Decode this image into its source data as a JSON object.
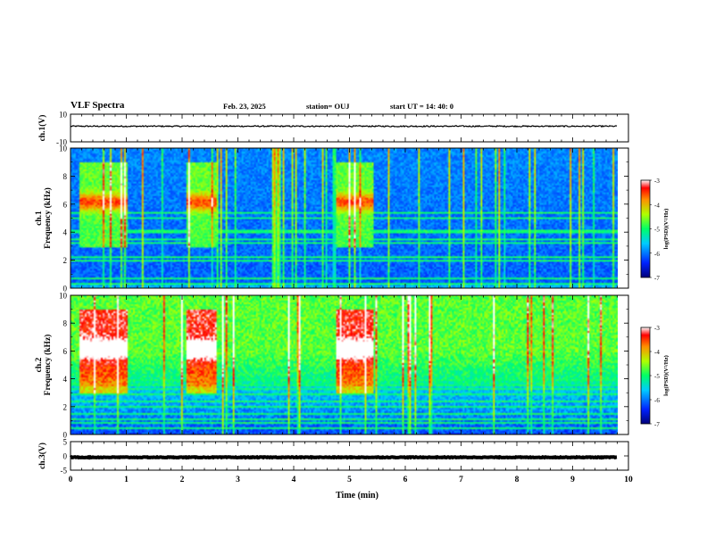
{
  "header": {
    "title": "VLF Spectra",
    "date": "Feb. 23, 2025",
    "station": "station= OUJ",
    "start": "start  UT =   14: 40: 0"
  },
  "chart_data": [
    {
      "type": "line",
      "name": "ch1-waveform",
      "ylabel": "ch.1(V)",
      "ylim": [
        -10,
        10
      ],
      "yticks": [
        "10",
        "-10"
      ],
      "xlim": [
        0,
        10
      ],
      "trace_level": 1.3,
      "trace_noise": 0.9
    },
    {
      "type": "heatmap",
      "name": "ch1-spectrogram",
      "ylabel": "ch.1\nFrequency (kHz)",
      "ylim": [
        0,
        10
      ],
      "yticks": [
        "0",
        "2",
        "4",
        "6",
        "8",
        "10"
      ],
      "xlim": [
        0,
        10
      ],
      "data_end_min": 9.8,
      "colorbar": {
        "label": "log(PSD)(V²/Hz)",
        "range": [
          -7,
          -3
        ],
        "ticks": [
          "-3",
          "-4",
          "-5",
          "-6",
          "-7"
        ]
      },
      "bursts": [
        [
          0.15,
          1.0
        ],
        [
          2.05,
          2.6
        ],
        [
          4.75,
          5.4
        ]
      ],
      "tones_khz": [
        0.4,
        0.8,
        1.2,
        2.0,
        2.3,
        3.1,
        3.3,
        3.6,
        4.0,
        4.2,
        5.1,
        5.4
      ]
    },
    {
      "type": "heatmap",
      "name": "ch2-spectrogram",
      "ylabel": "ch.2\nFrequency (kHz)",
      "ylim": [
        0,
        10
      ],
      "yticks": [
        "0",
        "2",
        "4",
        "6",
        "8",
        "10"
      ],
      "xlim": [
        0,
        10
      ],
      "data_end_min": 9.8,
      "colorbar": {
        "label": "log(PSD)(V²/Hz)",
        "range": [
          -7,
          -3
        ],
        "ticks": [
          "-3",
          "-4",
          "-5",
          "-6",
          "-7"
        ]
      },
      "bursts": [
        [
          0.15,
          1.0
        ],
        [
          2.05,
          2.6
        ],
        [
          4.75,
          5.4
        ]
      ],
      "tones_khz": [
        0.5,
        0.9,
        1.2,
        1.5,
        2.0,
        2.4,
        2.9,
        3.3,
        3.6,
        4.0
      ]
    },
    {
      "type": "line",
      "name": "ch3-waveform",
      "ylabel": "ch.3(V)",
      "ylim": [
        -5,
        5
      ],
      "yticks": [
        "5",
        "0",
        "-5"
      ],
      "xlim": [
        0,
        10
      ],
      "trace_level": -0.5,
      "trace_noise": 0.25
    }
  ],
  "xaxis": {
    "label": "Time (min)",
    "ticks": [
      "0",
      "1",
      "2",
      "3",
      "4",
      "5",
      "6",
      "7",
      "8",
      "9",
      "10"
    ]
  }
}
